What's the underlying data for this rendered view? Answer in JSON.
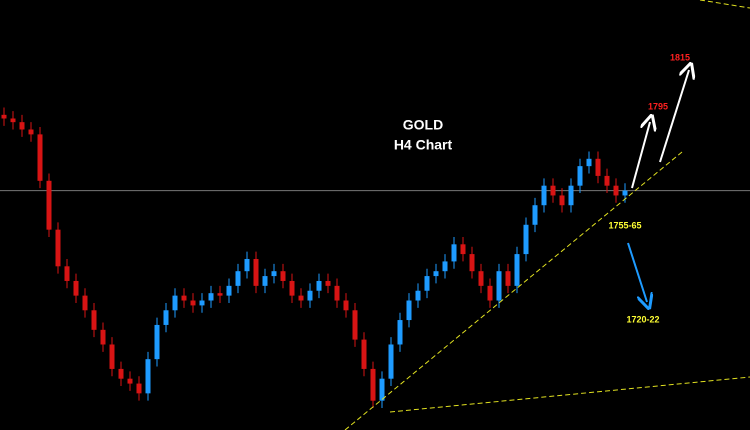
{
  "chart_data": {
    "type": "candlestick",
    "title": "GOLD",
    "subtitle": "H4 Chart",
    "ylim": [
      1663,
      1839
    ],
    "up_color": "#1e9bff",
    "down_color": "#d81414",
    "price_line": 1761,
    "series": {
      "open": [
        1792,
        1790.5,
        1789,
        1786,
        1784,
        1765,
        1745,
        1730,
        1724,
        1718,
        1712,
        1704,
        1698,
        1688,
        1684,
        1682,
        1678,
        1692,
        1706,
        1712,
        1718,
        1716,
        1714,
        1716,
        1719,
        1718,
        1722,
        1728,
        1733,
        1722,
        1726,
        1728,
        1724,
        1718,
        1716,
        1720,
        1724,
        1722,
        1716,
        1712,
        1700,
        1688,
        1675,
        1684,
        1698,
        1708,
        1716,
        1720,
        1726,
        1728,
        1732,
        1739,
        1735,
        1728,
        1722,
        1716,
        1728,
        1722,
        1735,
        1747,
        1755,
        1763,
        1759,
        1755,
        1763,
        1771,
        1774,
        1767,
        1763,
        1759
      ],
      "high": [
        1795,
        1793.5,
        1792,
        1789,
        1787,
        1768,
        1748,
        1733,
        1727,
        1721,
        1715,
        1707,
        1701,
        1691,
        1687,
        1685,
        1695,
        1709,
        1715,
        1721,
        1721,
        1719,
        1719,
        1722,
        1722,
        1725,
        1731,
        1736,
        1736,
        1729,
        1731,
        1731,
        1727,
        1721,
        1723,
        1727,
        1727,
        1725,
        1719,
        1715,
        1703,
        1691,
        1687,
        1701,
        1711,
        1719,
        1723,
        1729,
        1731,
        1735,
        1742,
        1742,
        1738,
        1731,
        1725,
        1731,
        1731,
        1738,
        1750,
        1758,
        1766,
        1766,
        1762,
        1766,
        1774,
        1777,
        1777,
        1770,
        1766,
        1764
      ],
      "low": [
        1787.5,
        1786,
        1783,
        1781,
        1762,
        1742,
        1727,
        1721,
        1715,
        1709,
        1701,
        1695,
        1685,
        1681,
        1679,
        1675,
        1675,
        1689,
        1703,
        1709,
        1713,
        1711,
        1711,
        1713,
        1715,
        1715,
        1719,
        1725,
        1719,
        1719,
        1723,
        1721,
        1715,
        1713,
        1713,
        1717,
        1719,
        1713,
        1709,
        1697,
        1685,
        1672,
        1672,
        1681,
        1695,
        1705,
        1713,
        1717,
        1723,
        1725,
        1729,
        1732,
        1725,
        1719,
        1713,
        1713,
        1719,
        1719,
        1732,
        1744,
        1752,
        1756,
        1752,
        1752,
        1760,
        1768,
        1764,
        1760,
        1756,
        1756
      ],
      "close": [
        1790.5,
        1789,
        1786,
        1784,
        1765,
        1745,
        1730,
        1724,
        1718,
        1712,
        1704,
        1698,
        1688,
        1684,
        1682,
        1678,
        1692,
        1706,
        1712,
        1718,
        1716,
        1714,
        1716,
        1719,
        1718,
        1722,
        1728,
        1733,
        1722,
        1726,
        1728,
        1724,
        1718,
        1716,
        1720,
        1724,
        1722,
        1716,
        1712,
        1700,
        1688,
        1675,
        1684,
        1698,
        1708,
        1716,
        1720,
        1726,
        1728,
        1732,
        1739,
        1735,
        1728,
        1722,
        1716,
        1728,
        1722,
        1735,
        1747,
        1755,
        1763,
        1759,
        1755,
        1763,
        1771,
        1774,
        1767,
        1763,
        1759,
        1761
      ]
    },
    "annotations": [
      {
        "text": "1815",
        "color": "#ff2020"
      },
      {
        "text": "1795",
        "color": "#ff2020"
      },
      {
        "text": "1755-65",
        "color": "#ffff33"
      },
      {
        "text": "1720-22",
        "color": "#ffff33"
      }
    ]
  }
}
